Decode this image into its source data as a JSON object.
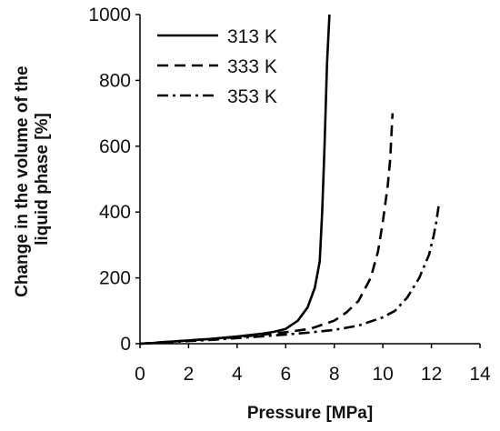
{
  "chart_data": {
    "type": "line",
    "xlabel": "Pressure [MPa]",
    "ylabel_lines": [
      "Change in the volume of the",
      "liquid phase [%]"
    ],
    "xlim": [
      0,
      14
    ],
    "ylim": [
      0,
      1000
    ],
    "xticks": [
      "0",
      "2",
      "4",
      "6",
      "8",
      "10",
      "12",
      "14"
    ],
    "yticks": [
      "0",
      "200",
      "400",
      "600",
      "800",
      "1000"
    ],
    "grid": false,
    "legend_position": "top-left",
    "series": [
      {
        "name": "313 K",
        "style": "solid",
        "color": "#000000",
        "x": [
          0,
          0.5,
          1,
          2,
          3,
          4,
          5,
          5.5,
          6,
          6.5,
          6.9,
          7.2,
          7.4,
          7.5,
          7.6,
          7.7,
          7.8
        ],
        "y": [
          0,
          2,
          5,
          10,
          15,
          22,
          30,
          36,
          45,
          70,
          110,
          170,
          250,
          400,
          600,
          850,
          1000
        ]
      },
      {
        "name": "333 K",
        "style": "dashed",
        "color": "#000000",
        "x": [
          0,
          1,
          2,
          3,
          4,
          5,
          6,
          7,
          8,
          8.5,
          9,
          9.5,
          9.8,
          10,
          10.2,
          10.3,
          10.4
        ],
        "y": [
          0,
          5,
          10,
          15,
          20,
          27,
          35,
          45,
          70,
          95,
          130,
          200,
          280,
          370,
          480,
          560,
          700
        ]
      },
      {
        "name": "353 K",
        "style": "dashdot",
        "color": "#000000",
        "x": [
          0,
          1,
          2,
          3,
          4,
          5,
          6,
          7,
          8,
          9,
          10,
          10.5,
          11,
          11.5,
          11.9,
          12.1,
          12.2,
          12.3
        ],
        "y": [
          0,
          4,
          8,
          12,
          17,
          22,
          28,
          34,
          42,
          55,
          80,
          100,
          140,
          200,
          270,
          330,
          370,
          420
        ]
      }
    ]
  }
}
